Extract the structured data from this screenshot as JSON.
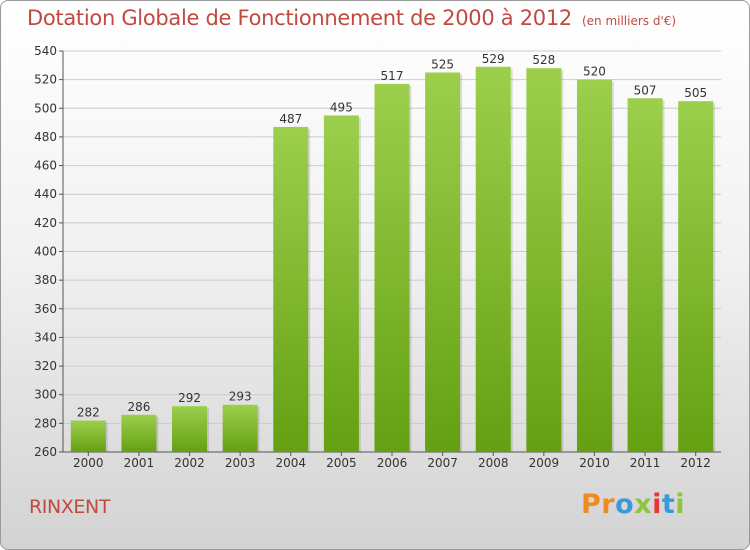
{
  "header": {
    "title": "Dotation Globale de Fonctionnement de 2000 à 2012",
    "unit": "(en milliers d'€)"
  },
  "footer": {
    "town": "RINXENT",
    "logo": "Proxiti"
  },
  "colors": {
    "bar_light": "#9ccf4c",
    "bar_dark": "#64a012",
    "title": "#c04a40",
    "grid": "#cccccc",
    "logo_letters": [
      "#f08a1e",
      "#f08a1e",
      "#3a9ad9",
      "#8cc63f",
      "#e23a3a",
      "#3a9ad9",
      "#8cc63f"
    ]
  },
  "chart_data": {
    "type": "bar",
    "title": "Dotation Globale de Fonctionnement de 2000 à 2012",
    "xlabel": "",
    "ylabel": "",
    "categories": [
      "2000",
      "2001",
      "2002",
      "2003",
      "2004",
      "2005",
      "2006",
      "2007",
      "2008",
      "2009",
      "2010",
      "2011",
      "2012"
    ],
    "values": [
      282,
      286,
      292,
      293,
      487,
      495,
      517,
      525,
      529,
      528,
      520,
      507,
      505
    ],
    "ylim": [
      260,
      540
    ],
    "yticks": [
      260,
      280,
      300,
      320,
      340,
      360,
      380,
      400,
      420,
      440,
      460,
      480,
      500,
      520,
      540
    ],
    "grid": true,
    "legend": "none"
  }
}
